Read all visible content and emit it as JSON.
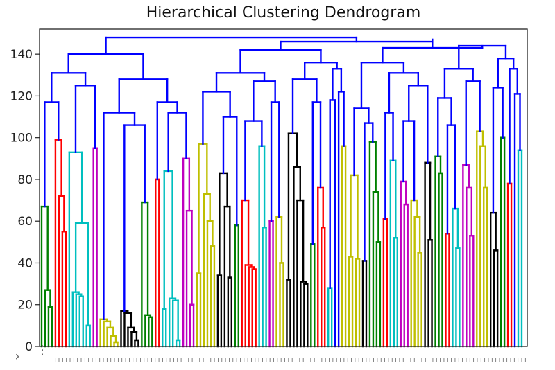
{
  "chart_data": {
    "type": "dendrogram",
    "title": "Hierarchical Clustering Dendrogram",
    "xlabel": "",
    "ylabel": "",
    "ylim": [
      0,
      152
    ],
    "yticks": [
      0,
      20,
      40,
      60,
      80,
      100,
      120,
      140
    ],
    "ytick_labels": [
      "0",
      "20",
      "40",
      "60",
      "80",
      "100",
      "120",
      "140"
    ],
    "grid": false,
    "cluster_colors": [
      "#008000",
      "#ff0000",
      "#00bfbf",
      "#bf00bf",
      "#bfbf00",
      "#000000",
      "#0000ff"
    ],
    "root_height": 148,
    "leaf_count": 128
  },
  "controls": {
    "expand_glyph": "›",
    "menu_glyph": "⋮"
  }
}
